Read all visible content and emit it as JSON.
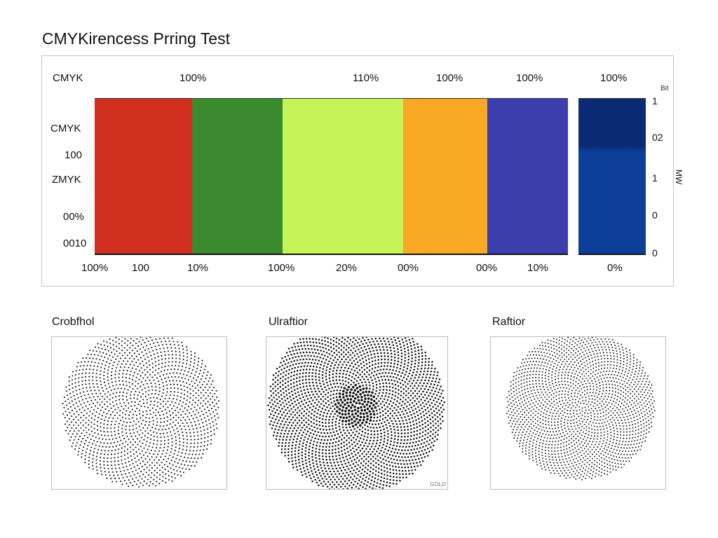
{
  "title": "CMYKirencess Prring Test",
  "strip": {
    "top_percents": [
      "100%",
      "110%",
      "100%",
      "100%",
      "100%"
    ],
    "corner_label": "CMYK",
    "left_labels": [
      "CMYK",
      "100",
      "ZMYK",
      "00%",
      "0010"
    ],
    "bottom_labels": [
      "100%",
      "100",
      "10%",
      "100%",
      "20%",
      "00%",
      "00%",
      "10%",
      "0%"
    ],
    "right_scale": [
      "1",
      "02",
      "1",
      "0",
      "0"
    ],
    "right_unit": "MW",
    "right_top": "Bit",
    "bar_colors": [
      "#d02e1f",
      "#3a8b2e",
      "#c5f358",
      "#f9a823",
      "#3d3ead"
    ],
    "dark_bar_colors": [
      "#0a2b73",
      "#0d3f9a"
    ]
  },
  "patterns": [
    {
      "title": "Crobfhol",
      "style": "light"
    },
    {
      "title": "Ulraftior",
      "style": "dense",
      "note": "GOLD"
    },
    {
      "title": "Raftior",
      "style": "grid"
    }
  ]
}
